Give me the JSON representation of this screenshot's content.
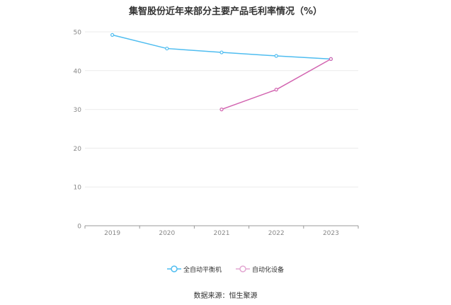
{
  "chart_data": {
    "type": "line",
    "title": "集智股份近年来部分主要产品毛利率情况（%）",
    "xlabel": "",
    "ylabel": "",
    "categories": [
      "2019",
      "2020",
      "2021",
      "2022",
      "2023"
    ],
    "ylim": [
      0,
      50
    ],
    "yticks": [
      0,
      10,
      20,
      30,
      40,
      50
    ],
    "grid": true,
    "legend_position": "bottom",
    "series": [
      {
        "name": "全自动平衡机",
        "color": "#4fbdf0",
        "values": [
          49.2,
          45.7,
          44.7,
          43.8,
          43.0
        ]
      },
      {
        "name": "自动化设备",
        "color": "#d264b0",
        "values": [
          null,
          null,
          30.0,
          35.1,
          43.0
        ]
      }
    ]
  },
  "footer": {
    "source": "数据来源：恒生聚源"
  }
}
